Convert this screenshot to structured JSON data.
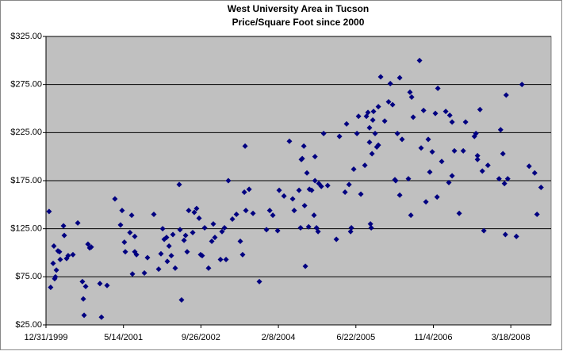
{
  "chart_data": {
    "type": "scatter",
    "title": "West University Area in Tucson",
    "subtitle": "Price/Square Foot since 2000",
    "color": "#000080",
    "plot_background": "#c0c0c0",
    "grid": true,
    "xlim": [
      36525,
      39785
    ],
    "xticks": [
      {
        "value": 36525,
        "label": "12/31/1999"
      },
      {
        "value": 37025,
        "label": "5/14/2001"
      },
      {
        "value": 37525,
        "label": "9/26/2002"
      },
      {
        "value": 38025,
        "label": "2/8/2004"
      },
      {
        "value": 38525,
        "label": "6/22/2005"
      },
      {
        "value": 39025,
        "label": "11/4/2006"
      },
      {
        "value": 39525,
        "label": "3/18/2008"
      }
    ],
    "ylim": [
      25,
      325
    ],
    "yticks": [
      {
        "value": 25,
        "label": "$25.00"
      },
      {
        "value": 75,
        "label": "$75.00"
      },
      {
        "value": 125,
        "label": "$125.00"
      },
      {
        "value": 175,
        "label": "$175.00"
      },
      {
        "value": 225,
        "label": "$225.00"
      },
      {
        "value": 275,
        "label": "$275.00"
      },
      {
        "value": 325,
        "label": "$325.00"
      }
    ],
    "x": [
      36545,
      36555,
      36571,
      36576,
      36581,
      36586,
      36592,
      36602,
      36612,
      36617,
      36638,
      36643,
      36658,
      36668,
      36699,
      36730,
      36760,
      36766,
      36771,
      36781,
      36796,
      36807,
      36817,
      36873,
      36883,
      36919,
      36970,
      37006,
      37016,
      37031,
      37037,
      37067,
      37078,
      37083,
      37098,
      37098,
      37109,
      37160,
      37180,
      37221,
      37252,
      37267,
      37278,
      37288,
      37303,
      37308,
      37319,
      37334,
      37344,
      37359,
      37385,
      37390,
      37400,
      37416,
      37426,
      37436,
      37446,
      37472,
      37482,
      37497,
      37513,
      37523,
      37533,
      37549,
      37574,
      37595,
      37605,
      37615,
      37651,
      37661,
      37677,
      37687,
      37702,
      37728,
      37754,
      37779,
      37794,
      37805,
      37810,
      37815,
      37836,
      37861,
      37902,
      37948,
      37969,
      37989,
      38020,
      38030,
      38061,
      38096,
      38117,
      38127,
      38158,
      38168,
      38173,
      38179,
      38189,
      38194,
      38199,
      38209,
      38220,
      38225,
      38240,
      38255,
      38261,
      38261,
      38271,
      38281,
      38286,
      38302,
      38317,
      38343,
      38399,
      38419,
      38455,
      38465,
      38481,
      38491,
      38496,
      38511,
      38532,
      38542,
      38557,
      38583,
      38593,
      38603,
      38613,
      38613,
      38619,
      38624,
      38629,
      38634,
      38639,
      38649,
      38660,
      38670,
      38670,
      38685,
      38711,
      38736,
      38747,
      38762,
      38777,
      38782,
      38793,
      38808,
      38808,
      38823,
      38864,
      38874,
      38880,
      38885,
      38895,
      38936,
      38946,
      38962,
      38977,
      38992,
      39002,
      39018,
      39038,
      39049,
      39054,
      39079,
      39105,
      39125,
      39131,
      39146,
      39146,
      39161,
      39192,
      39218,
      39233,
      39290,
      39300,
      39310,
      39310,
      39326,
      39341,
      39351,
      39377,
      39449,
      39459,
      39474,
      39484,
      39490,
      39495,
      39505,
      39561,
      39597,
      39643,
      39679,
      39694,
      39720
    ],
    "values": [
      143,
      64,
      89,
      107,
      73,
      75,
      82,
      102,
      101,
      93,
      128,
      118,
      94,
      97,
      98,
      131,
      70,
      52,
      35,
      65,
      109,
      105,
      106,
      68,
      33,
      66,
      156,
      129,
      144,
      111,
      101,
      121,
      139,
      78,
      101,
      117,
      98,
      79,
      95,
      140,
      83,
      99,
      125,
      114,
      116,
      91,
      107,
      97,
      119,
      84,
      171,
      124,
      51,
      113,
      118,
      101,
      144,
      121,
      142,
      146,
      136,
      98,
      97,
      126,
      84,
      112,
      130,
      116,
      93,
      122,
      126,
      93,
      175,
      135,
      140,
      112,
      98,
      163,
      211,
      144,
      166,
      141,
      70,
      124,
      144,
      139,
      123,
      165,
      159,
      216,
      156,
      144,
      165,
      126,
      197,
      198,
      211,
      149,
      86,
      183,
      127,
      166,
      165,
      139,
      175,
      200,
      126,
      122,
      172,
      169,
      224,
      170,
      114,
      221,
      163,
      234,
      171,
      122,
      126,
      187,
      224,
      242,
      161,
      191,
      242,
      246,
      215,
      230,
      130,
      126,
      203,
      238,
      247,
      224,
      210,
      252,
      212,
      283,
      237,
      257,
      276,
      254,
      176,
      175,
      224,
      282,
      160,
      218,
      177,
      267,
      139,
      262,
      241,
      300,
      209,
      248,
      153,
      218,
      184,
      205,
      245,
      158,
      271,
      195,
      247,
      173,
      243,
      236,
      180,
      206,
      141,
      206,
      236,
      221,
      224,
      201,
      197,
      249,
      185,
      123,
      191,
      177,
      228,
      203,
      172,
      119,
      264,
      177,
      117,
      275,
      190,
      183,
      140,
      168
    ]
  }
}
